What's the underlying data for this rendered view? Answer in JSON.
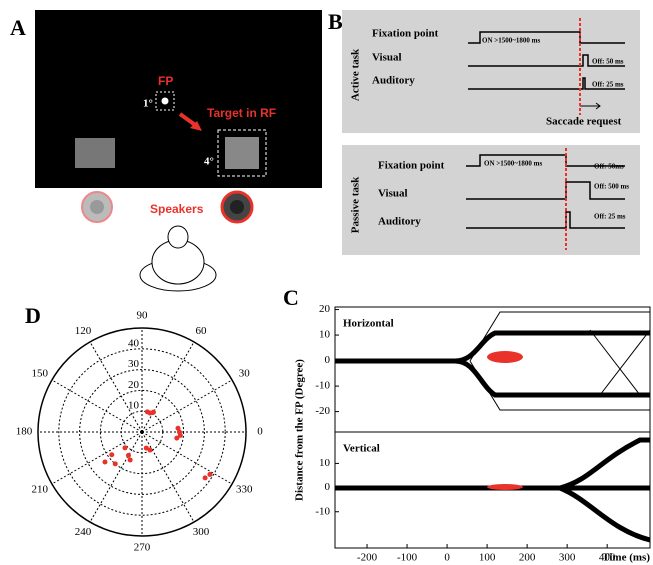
{
  "panels": {
    "a": {
      "letter": "A",
      "fp": "FP",
      "fp_size": "1°",
      "target": "Target in RF",
      "target_size": "4°",
      "speakers": "Speakers"
    },
    "b": {
      "letter": "B",
      "active": {
        "task": "Active task",
        "fixation": "Fixation point",
        "fixation_note": "ON >1500~1800 ms",
        "visual": "Visual",
        "visual_note": "Off: 50 ms",
        "auditory": "Auditory",
        "auditory_note": "Off: 25 ms",
        "saccade": "Saccade request"
      },
      "passive": {
        "task": "Passive task",
        "fixation": "Fixation point",
        "fixation_note": "ON >1500~1800 ms",
        "fixation_off": "Off: 50ms",
        "visual": "Visual",
        "visual_note": "Off: 500 ms",
        "auditory": "Auditory",
        "auditory_note": "Off: 25 ms"
      }
    },
    "c": {
      "letter": "C"
    },
    "d": {
      "letter": "D"
    }
  },
  "chart_data": [
    {
      "type": "polar_scatter",
      "color": "#e8322a",
      "rlim": [
        0,
        50
      ],
      "rticks": [
        10,
        20,
        30,
        40
      ],
      "thetaticks": [
        0,
        30,
        60,
        90,
        120,
        150,
        180,
        210,
        240,
        270,
        300,
        330
      ],
      "theta": [
        67,
        60,
        75,
        6,
        0,
        355,
        350,
        219,
        217,
        223,
        247,
        240,
        294,
        285,
        324,
        328,
        230
      ],
      "r": [
        9.9,
        11,
        10,
        17.4,
        18,
        18.5,
        17,
        22.9,
        18.2,
        11.2,
        14.6,
        13,
        9.5,
        8,
        37.5,
        38.5,
        20
      ]
    },
    {
      "type": "line",
      "title": "Horizontal",
      "ylabel": "Distance from the FP (Degree)",
      "xlim": [
        -280,
        507
      ],
      "ylim": [
        -28,
        21
      ],
      "yticks": [
        -20,
        -10,
        0,
        10,
        20
      ]
    },
    {
      "type": "line",
      "title": "Vertical",
      "xlabel": "Time (ms)",
      "xlim": [
        -280,
        507
      ],
      "ylim": [
        -25,
        23
      ],
      "yticks": [
        -10,
        0,
        10
      ],
      "xticks": [
        -200,
        -100,
        0,
        100,
        200,
        300,
        400
      ]
    }
  ]
}
